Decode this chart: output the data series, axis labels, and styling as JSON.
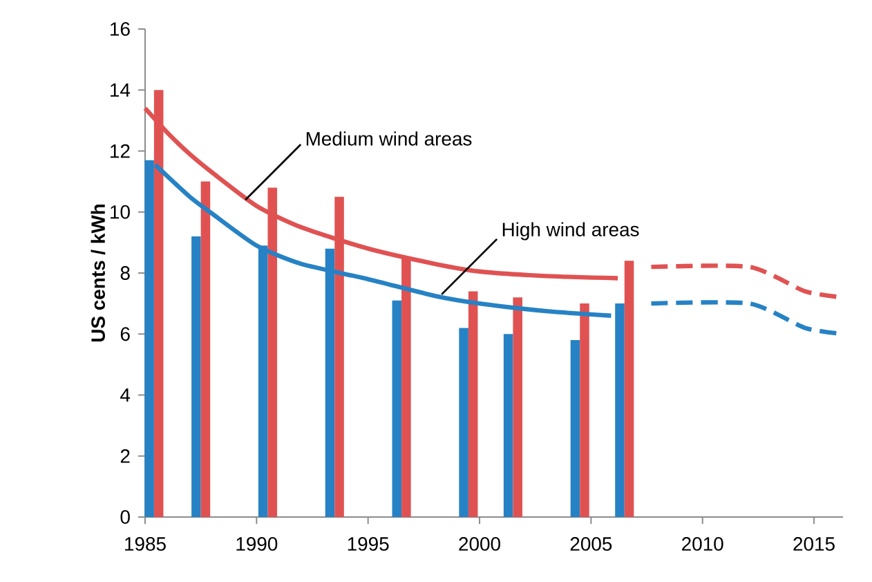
{
  "chart_data": {
    "type": "bar",
    "ylabel": "US cents / kWh",
    "xlim": [
      1985,
      2016.3
    ],
    "xticks": [
      1985,
      1990,
      1995,
      2000,
      2005,
      2010,
      2015
    ],
    "ylim": [
      0,
      16
    ],
    "yticks": [
      0,
      2,
      4,
      6,
      8,
      10,
      12,
      14,
      16
    ],
    "grid": false,
    "series": [
      {
        "color": "#2682c4",
        "x": [
          1985.4,
          1987.5,
          1990.5,
          1993.5,
          1996.5,
          1999.5,
          2001.5,
          2004.5,
          2006.5
        ],
        "values": [
          11.7,
          9.2,
          8.9,
          8.8,
          7.1,
          6.2,
          6.0,
          5.8,
          7.0
        ]
      },
      {
        "color": "#e05252",
        "x": [
          1985.4,
          1987.5,
          1990.5,
          1993.5,
          1996.5,
          1999.5,
          2001.5,
          2004.5,
          2006.5
        ],
        "values": [
          14.0,
          11.0,
          10.8,
          10.5,
          8.5,
          7.4,
          7.2,
          7.0,
          8.4
        ]
      },
      {
        "type": "line",
        "color": "#e05252",
        "line_style": "solid",
        "x": [
          1985,
          1986,
          1987,
          1988,
          1990,
          1992,
          1995,
          1998,
          2000,
          2003,
          2006.2
        ],
        "values": [
          13.4,
          12.6,
          11.9,
          11.3,
          10.2,
          9.5,
          8.8,
          8.3,
          8.05,
          7.9,
          7.83
        ]
      },
      {
        "type": "line",
        "color": "#2682c4",
        "line_style": "solid",
        "x": [
          1985.45,
          1987,
          1988,
          1990,
          1992,
          1995,
          1998,
          2000,
          2003,
          2005.9
        ],
        "values": [
          11.55,
          10.5,
          9.95,
          8.9,
          8.3,
          7.8,
          7.25,
          7.0,
          6.75,
          6.6
        ]
      },
      {
        "type": "line",
        "color": "#e05252",
        "line_style": "dashed",
        "x": [
          2007.7,
          2012.1,
          2014.6,
          2016.3
        ],
        "values": [
          8.2,
          8.2,
          7.4,
          7.2
        ]
      },
      {
        "type": "line",
        "color": "#2682c4",
        "line_style": "dashed",
        "x": [
          2007.7,
          2012.1,
          2014.6,
          2016.3
        ],
        "values": [
          7.0,
          7.0,
          6.2,
          6.0
        ]
      }
    ],
    "annotations": [
      {
        "text": "Medium wind areas",
        "x": 1989.5,
        "y": 10.4
      },
      {
        "text": "High wind areas",
        "x": 1998.3,
        "y": 7.3
      }
    ]
  }
}
